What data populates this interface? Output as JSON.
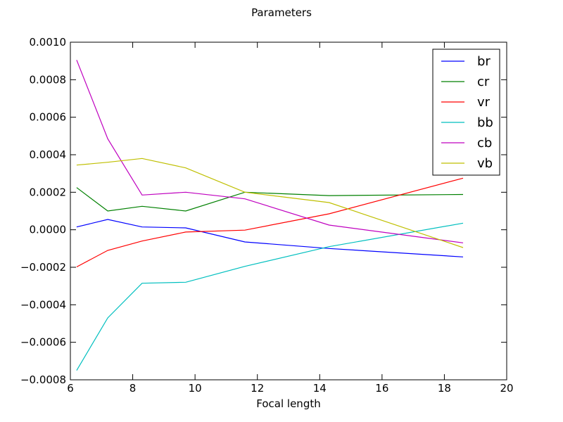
{
  "chart_data": {
    "type": "line",
    "title": "Parameters",
    "xlabel": "Focal length",
    "ylabel": "",
    "xlim": [
      6,
      20
    ],
    "ylim": [
      -0.0008,
      0.001
    ],
    "xticks": [
      6,
      8,
      10,
      12,
      14,
      16,
      18,
      20
    ],
    "xtick_labels": [
      "6",
      "8",
      "10",
      "12",
      "14",
      "16",
      "18",
      "20"
    ],
    "yticks": [
      -0.0008,
      -0.0006,
      -0.0004,
      -0.0002,
      0.0,
      0.0002,
      0.0004,
      0.0006,
      0.0008,
      0.001
    ],
    "ytick_labels": [
      "−0.0008",
      "−0.0006",
      "−0.0004",
      "−0.0002",
      "0.0000",
      "0.0002",
      "0.0004",
      "0.0006",
      "0.0008",
      "0.0010"
    ],
    "grid": false,
    "legend_position": "top-right",
    "x": [
      6.2,
      7.2,
      8.3,
      9.7,
      11.6,
      14.3,
      18.6
    ],
    "series": [
      {
        "name": "br",
        "color": "#0000ff",
        "values": [
          1.5e-05,
          5.5e-05,
          1.5e-05,
          1e-05,
          -6.5e-05,
          -0.0001,
          -0.000145
        ]
      },
      {
        "name": "cr",
        "color": "#008000",
        "values": [
          0.000225,
          0.0001,
          0.000125,
          0.0001,
          0.0002,
          0.000182,
          0.000188
        ]
      },
      {
        "name": "vr",
        "color": "#ff0000",
        "values": [
          -0.000198,
          -0.00011,
          -6e-05,
          -1.2e-05,
          -2e-06,
          8.5e-05,
          0.000275
        ]
      },
      {
        "name": "bb",
        "color": "#00bfbf",
        "values": [
          -0.00075,
          -0.00047,
          -0.000285,
          -0.00028,
          -0.000195,
          -9e-05,
          3.5e-05
        ]
      },
      {
        "name": "cb",
        "color": "#bf00bf",
        "values": [
          0.000905,
          0.000485,
          0.000185,
          0.0002,
          0.000165,
          2.5e-05,
          -7e-05
        ]
      },
      {
        "name": "vb",
        "color": "#bfbf00",
        "values": [
          0.000345,
          0.00036,
          0.00038,
          0.00033,
          0.0002,
          0.000145,
          -9.5e-05
        ]
      }
    ]
  }
}
